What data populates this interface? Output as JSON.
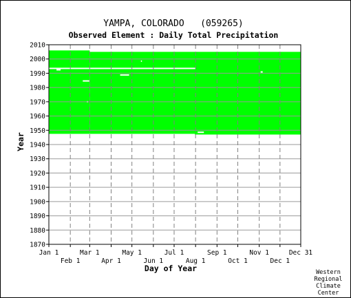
{
  "chart_data": {
    "type": "heatmap",
    "title": "YAMPA, COLORADO   (059265)",
    "subtitle": "Observed Element : Daily Total Precipitation",
    "xlabel": "Day of Year",
    "ylabel": "Year",
    "xlim": [
      1,
      365
    ],
    "ylim": [
      1870,
      2010
    ],
    "yticks": [
      1870,
      1880,
      1890,
      1900,
      1910,
      1920,
      1930,
      1940,
      1950,
      1960,
      1970,
      1980,
      1990,
      2000,
      2010
    ],
    "xticks_top_row": [
      {
        "label": "Jan 1",
        "day": 1
      },
      {
        "label": "Mar 1",
        "day": 60
      },
      {
        "label": "May 1",
        "day": 121
      },
      {
        "label": "Jul 1",
        "day": 182
      },
      {
        "label": "Sep 1",
        "day": 244
      },
      {
        "label": "Nov 1",
        "day": 305
      },
      {
        "label": "Dec 31",
        "day": 365
      }
    ],
    "xticks_bottom_row": [
      {
        "label": "Feb 1",
        "day": 32
      },
      {
        "label": "Apr 1",
        "day": 91
      },
      {
        "label": "Jun 1",
        "day": 152
      },
      {
        "label": "Aug 1",
        "day": 213
      },
      {
        "label": "Oct 1",
        "day": 274
      },
      {
        "label": "Dec 1",
        "day": 335
      }
    ],
    "data_color": "#00ff00",
    "grid": true,
    "coverage": {
      "start_year": 1947.5,
      "segments": [
        {
          "day_start": 1,
          "day_end": 60,
          "end_year": 2006
        },
        {
          "day_start": 60,
          "day_end": 365,
          "end_year": 2005
        }
      ],
      "bottom_notch": {
        "day_start": 212,
        "day_end": 365,
        "start_year": 1947
      }
    },
    "missing_gaps": [
      {
        "day_start": 1,
        "day_end": 213,
        "year": 1993.4
      },
      {
        "day_start": 12,
        "day_end": 18,
        "year": 1992.4
      },
      {
        "day_start": 50,
        "day_end": 60,
        "year": 1984.6
      },
      {
        "day_start": 104,
        "day_end": 117,
        "year": 1988.8
      },
      {
        "day_start": 216,
        "day_end": 225,
        "year": 1948.6
      },
      {
        "day_start": 307,
        "day_end": 310,
        "year": 1990.9
      },
      {
        "day_start": 56,
        "day_end": 57,
        "year": 1970.0
      },
      {
        "day_start": 134,
        "day_end": 135,
        "year": 1998.5
      }
    ],
    "credit": [
      "Western",
      "Regional",
      "Climate",
      "Center"
    ]
  }
}
